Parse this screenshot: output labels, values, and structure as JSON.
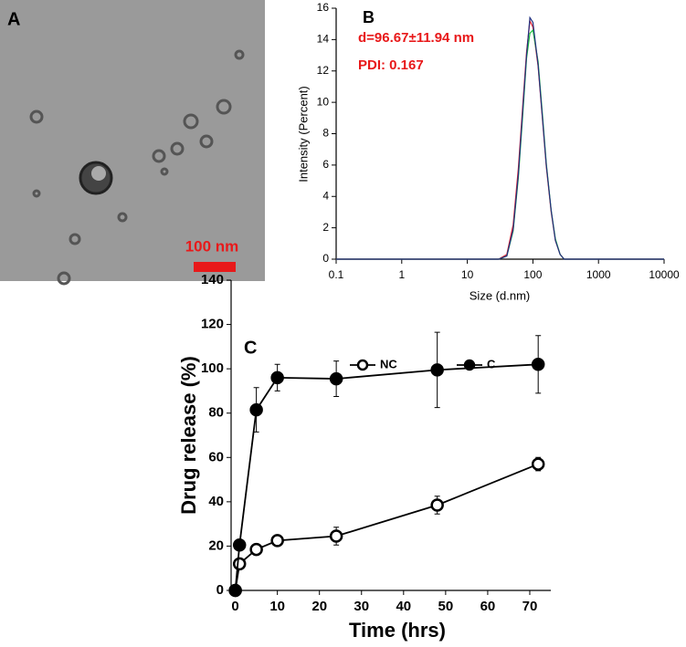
{
  "panel_a": {
    "label": "A",
    "scale_bar": "100 nm"
  },
  "chart_data": [
    {
      "type": "line",
      "label": "B",
      "annotations": [
        "d=96.67±11.94 nm",
        "PDI: 0.167"
      ],
      "annotation_color": "#e8191a",
      "x_label": "Size (d.nm)",
      "y_label": "Intensity (Percent)",
      "log_x": true,
      "xlim": [
        0.1,
        10000
      ],
      "xticks": [
        0.1,
        1,
        10,
        100,
        1000,
        10000
      ],
      "ylim": [
        0,
        16
      ],
      "yticks": [
        0,
        2,
        4,
        6,
        8,
        10,
        12,
        14,
        16
      ],
      "x": [
        0.1,
        30,
        40,
        50,
        60,
        70,
        80,
        90,
        100,
        120,
        140,
        160,
        190,
        220,
        260,
        300,
        10000
      ],
      "series": [
        {
          "color": "#e02030",
          "values": [
            0,
            0,
            0.3,
            2.2,
            5.8,
            9.8,
            13.2,
            15.2,
            14.8,
            12.3,
            8.9,
            5.9,
            3.0,
            1.2,
            0.3,
            0,
            0
          ]
        },
        {
          "color": "#20c040",
          "values": [
            0,
            0,
            0.2,
            1.8,
            5.2,
            9.2,
            12.8,
            14.4,
            14.6,
            12.6,
            9.2,
            6.1,
            3.1,
            1.3,
            0.3,
            0,
            0
          ]
        },
        {
          "color": "#203080",
          "values": [
            0,
            0,
            0.2,
            1.9,
            5.4,
            9.5,
            13.0,
            15.4,
            15.1,
            12.4,
            9.0,
            6.0,
            3.1,
            1.2,
            0.3,
            0,
            0
          ]
        }
      ]
    },
    {
      "type": "line",
      "label": "C",
      "x_label": "Time (hrs)",
      "y_label": "Drug release (%)",
      "xlim": [
        -1,
        75
      ],
      "xticks": [
        0,
        10,
        20,
        30,
        40,
        50,
        60,
        70
      ],
      "ylim": [
        0,
        140
      ],
      "yticks": [
        0,
        20,
        40,
        60,
        80,
        100,
        120,
        140
      ],
      "x": [
        0,
        1,
        5,
        10,
        24,
        48,
        72
      ],
      "series": [
        {
          "name": "NC",
          "color": "#000000",
          "marker": "open",
          "values": [
            0,
            12,
            18.5,
            22.5,
            24.5,
            38.5,
            57
          ],
          "errors": [
            0,
            1.5,
            2,
            2,
            4,
            4,
            3
          ]
        },
        {
          "name": "C",
          "color": "#000000",
          "marker": "filled",
          "values": [
            0,
            20.5,
            81.5,
            96,
            95.5,
            99.5,
            102
          ],
          "errors": [
            0,
            2,
            10,
            6,
            8,
            17,
            13
          ]
        }
      ]
    }
  ]
}
